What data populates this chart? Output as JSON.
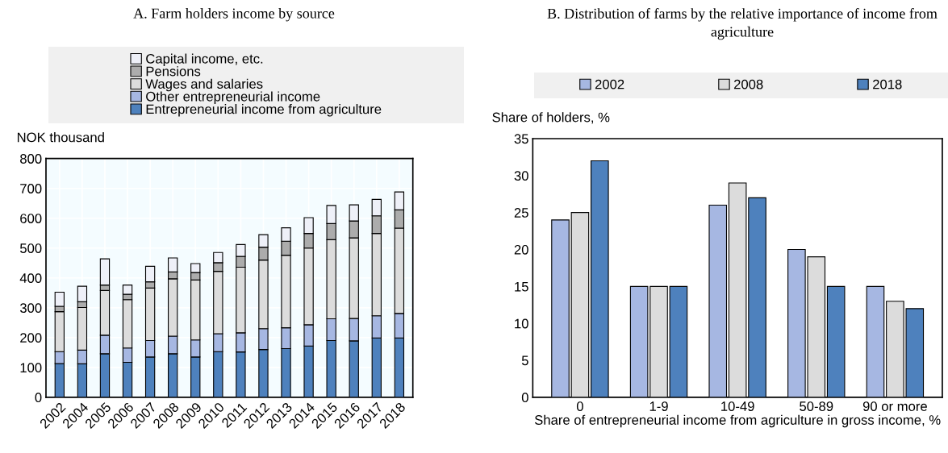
{
  "chart_data": [
    {
      "type": "bar",
      "title": "A. Farm holders income by source",
      "ylabel": "NOK thousand",
      "stacked": true,
      "grid": true,
      "legend": "top",
      "categories": [
        "2002",
        "2004",
        "2005",
        "2006",
        "2007",
        "2008",
        "2009",
        "2010",
        "2011",
        "2012",
        "2013",
        "2014",
        "2015",
        "2016",
        "2017",
        "2018"
      ],
      "ylim": [
        0,
        800
      ],
      "yticks": [
        0,
        100,
        200,
        300,
        400,
        500,
        600,
        700,
        800
      ],
      "series": [
        {
          "name": "Entrepreneurial income from agriculture",
          "color": "#4e81bd",
          "values": [
            113,
            112,
            146,
            117,
            135,
            146,
            135,
            153,
            152,
            160,
            163,
            172,
            190,
            189,
            199,
            199
          ]
        },
        {
          "name": "Other entrepreneurial income",
          "color": "#a6b7e2",
          "values": [
            40,
            46,
            62,
            48,
            55,
            59,
            57,
            60,
            64,
            70,
            70,
            71,
            73,
            75,
            74,
            82
          ]
        },
        {
          "name": "Wages and salaries",
          "color": "#dcdcdc",
          "values": [
            134,
            143,
            150,
            162,
            176,
            192,
            201,
            209,
            220,
            230,
            243,
            257,
            265,
            270,
            276,
            286
          ]
        },
        {
          "name": "Pensions",
          "color": "#acacac",
          "values": [
            18,
            19,
            18,
            18,
            21,
            23,
            25,
            29,
            36,
            43,
            47,
            49,
            54,
            57,
            59,
            61
          ]
        },
        {
          "name": "Capital income, etc.",
          "color": "#eef0f8",
          "values": [
            47,
            52,
            88,
            31,
            52,
            47,
            30,
            34,
            40,
            42,
            45,
            53,
            61,
            54,
            55,
            60
          ]
        }
      ]
    },
    {
      "type": "bar",
      "title": "B. Distribution of farms by the relative importance of income from agriculture",
      "ylabel": "Share of holders, %",
      "xlabel": "Share of entrepreneurial income from agriculture in gross income, %",
      "grid": false,
      "legend": "top",
      "categories": [
        "0",
        "1-9",
        "10-49",
        "50-89",
        "90 or more"
      ],
      "ylim": [
        0,
        35
      ],
      "yticks": [
        0,
        5,
        10,
        15,
        20,
        25,
        30,
        35
      ],
      "series": [
        {
          "name": "2002",
          "color": "#a6b7e2",
          "values": [
            24,
            15,
            26,
            20,
            15
          ]
        },
        {
          "name": "2008",
          "color": "#dcdcdc",
          "values": [
            25,
            15,
            29,
            19,
            13
          ]
        },
        {
          "name": "2018",
          "color": "#4e81bd",
          "values": [
            32,
            15,
            27,
            15,
            12
          ]
        }
      ]
    }
  ]
}
